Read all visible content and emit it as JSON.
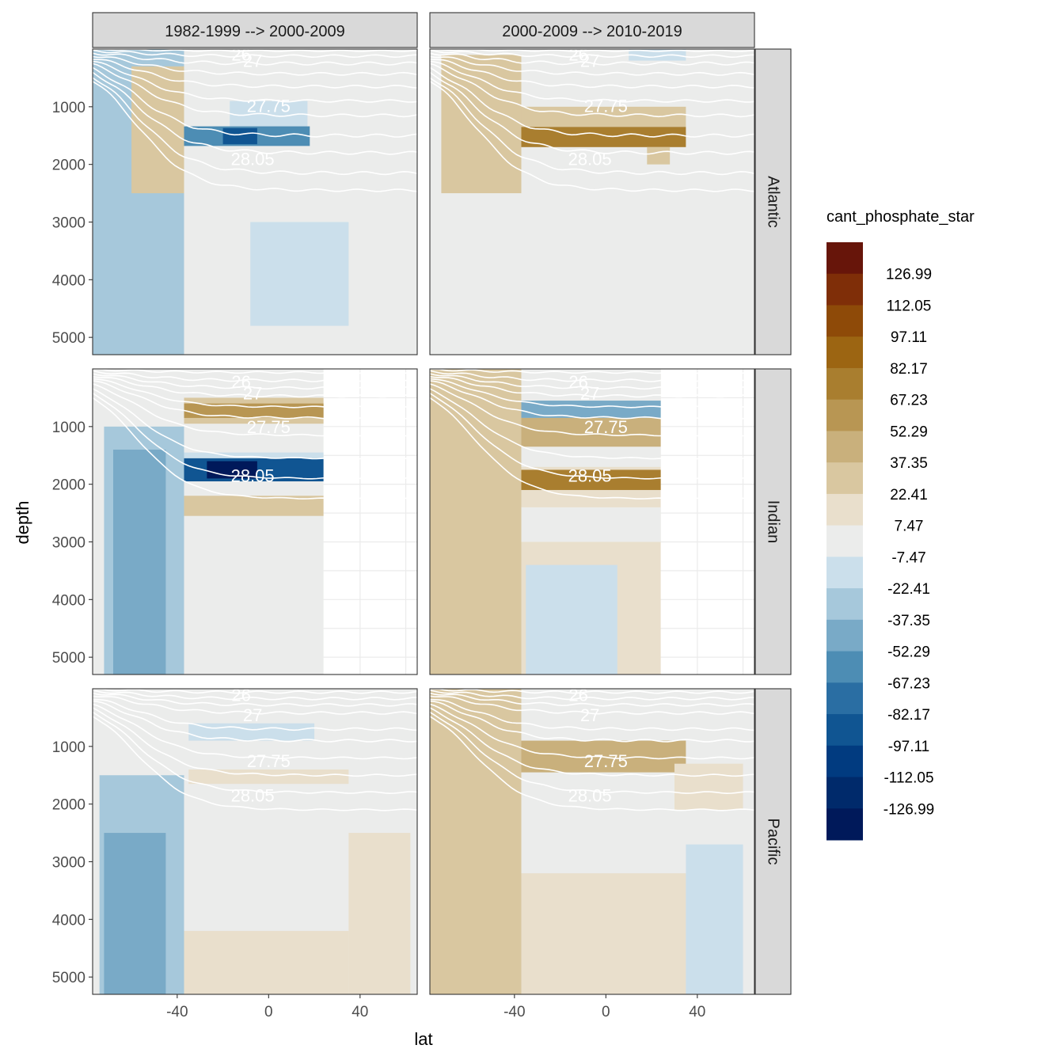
{
  "chart_data": {
    "type": "heatmap",
    "subtype": "faceted filled-contour ocean sections",
    "xlabel": "lat",
    "ylabel": "depth",
    "xlim": [
      -77,
      65
    ],
    "ylim": [
      5300,
      0
    ],
    "x_ticks": [
      -40,
      0,
      40
    ],
    "y_ticks": [
      1000,
      2000,
      3000,
      4000,
      5000
    ],
    "col_facets": [
      "1982-1999 --> 2000-2009",
      "2000-2009 --> 2010-2019"
    ],
    "row_facets": [
      "Atlantic",
      "Indian",
      "Pacific"
    ],
    "legend": {
      "title": "cant_phosphate_star",
      "labels": [
        "126.99",
        "112.05",
        "97.11",
        "82.17",
        "67.23",
        "52.29",
        "37.35",
        "22.41",
        "7.47",
        "-7.47",
        "-22.41",
        "-37.35",
        "-52.29",
        "-67.23",
        "-82.17",
        "-97.11",
        "-112.05",
        "-126.99"
      ],
      "colors": [
        "#67150a",
        "#7f2e08",
        "#8e4a08",
        "#9c6512",
        "#a97e2f",
        "#b89653",
        "#c9b07c",
        "#d9c7a0",
        "#e9dfcc",
        "#ebeceb",
        "#cbdfeb",
        "#a6c8db",
        "#79aac7",
        "#4d8db4",
        "#2a6ea3",
        "#105592",
        "#013b80",
        "#002a6b",
        "#00195a"
      ]
    },
    "isopycnals": {
      "labeled_values": [
        "26",
        "27",
        "27.75",
        "28.05"
      ],
      "sections": {
        "Atlantic": [
          [
            30,
            10
          ],
          [
            120,
            20
          ],
          [
            250,
            25
          ],
          [
            430,
            22
          ],
          [
            650,
            22
          ],
          [
            900,
            20
          ],
          [
            1150,
            22
          ],
          [
            1500,
            25
          ],
          [
            1800,
            25
          ],
          [
            2150,
            25
          ],
          [
            2450,
            20
          ]
        ],
        "Indian": [
          [
            60,
            15
          ],
          [
            200,
            20
          ],
          [
            330,
            18
          ],
          [
            470,
            18
          ],
          [
            660,
            12
          ],
          [
            850,
            15
          ],
          [
            1150,
            12
          ],
          [
            1550,
            10
          ],
          [
            1900,
            10
          ],
          [
            2250,
            8
          ]
        ],
        "Pacific": [
          [
            60,
            18
          ],
          [
            170,
            20
          ],
          [
            280,
            20
          ],
          [
            420,
            20
          ],
          [
            700,
            20
          ],
          [
            900,
            20
          ],
          [
            1200,
            15
          ],
          [
            1500,
            15
          ],
          [
            1800,
            15
          ],
          [
            2100,
            12
          ]
        ]
      }
    },
    "panels": [
      {
        "col": 0,
        "row": 0,
        "basin": "Atlantic",
        "blocks": [
          {
            "lat": [
              -77,
              -37
            ],
            "depth": [
              0,
              5300
            ],
            "value": -37
          },
          {
            "lat": [
              -77,
              -60
            ],
            "depth": [
              0,
              1300
            ],
            "value": -37
          },
          {
            "lat": [
              -60,
              -37
            ],
            "depth": [
              300,
              2500
            ],
            "value": 30
          },
          {
            "lat": [
              -37,
              65
            ],
            "depth": [
              0,
              5300
            ],
            "value": 0
          },
          {
            "lat": [
              -17,
              17
            ],
            "depth": [
              900,
              1350
            ],
            "value": -22
          },
          {
            "lat": [
              -37,
              18
            ],
            "depth": [
              1340,
              1680
            ],
            "value": -67
          },
          {
            "lat": [
              -20,
              -5
            ],
            "depth": [
              1370,
              1650
            ],
            "value": -97
          },
          {
            "lat": [
              -8,
              35
            ],
            "depth": [
              3000,
              4800
            ],
            "value": -22
          }
        ]
      },
      {
        "col": 1,
        "row": 0,
        "basin": "Atlantic",
        "blocks": [
          {
            "lat": [
              -77,
              65
            ],
            "depth": [
              0,
              5300
            ],
            "value": 0
          },
          {
            "lat": [
              -72,
              -37
            ],
            "depth": [
              100,
              2500
            ],
            "value": 25
          },
          {
            "lat": [
              -37,
              35
            ],
            "depth": [
              1000,
              1350
            ],
            "value": 30
          },
          {
            "lat": [
              -37,
              35
            ],
            "depth": [
              1350,
              1700
            ],
            "value": 70
          },
          {
            "lat": [
              18,
              28
            ],
            "depth": [
              1700,
              2000
            ],
            "value": 25
          },
          {
            "lat": [
              10,
              35
            ],
            "depth": [
              0,
              200
            ],
            "value": -22
          }
        ]
      },
      {
        "col": 0,
        "row": 1,
        "basin": "Indian",
        "blocks": [
          {
            "lat": [
              -77,
              -37
            ],
            "depth": [
              0,
              5300
            ],
            "value": 0
          },
          {
            "lat": [
              -72,
              -37
            ],
            "depth": [
              1000,
              5300
            ],
            "value": -37
          },
          {
            "lat": [
              -68,
              -45
            ],
            "depth": [
              1400,
              5300
            ],
            "value": -52
          },
          {
            "lat": [
              -37,
              24
            ],
            "depth": [
              0,
              5300
            ],
            "value": 0
          },
          {
            "lat": [
              -37,
              24
            ],
            "depth": [
              500,
              950
            ],
            "value": 25
          },
          {
            "lat": [
              -37,
              24
            ],
            "depth": [
              600,
              850
            ],
            "value": 60
          },
          {
            "lat": [
              -37,
              24
            ],
            "depth": [
              1450,
              1550
            ],
            "value": -22
          },
          {
            "lat": [
              -37,
              24
            ],
            "depth": [
              1550,
              1950
            ],
            "value": -97
          },
          {
            "lat": [
              -27,
              -5
            ],
            "depth": [
              1600,
              1900
            ],
            "value": -127
          },
          {
            "lat": [
              -37,
              24
            ],
            "depth": [
              2200,
              2550
            ],
            "value": 25
          }
        ]
      },
      {
        "col": 1,
        "row": 1,
        "basin": "Indian",
        "blocks": [
          {
            "lat": [
              -77,
              -37
            ],
            "depth": [
              0,
              5300
            ],
            "value": 30
          },
          {
            "lat": [
              -37,
              24
            ],
            "depth": [
              0,
              5300
            ],
            "value": 15
          },
          {
            "lat": [
              -37,
              24
            ],
            "depth": [
              0,
              700
            ],
            "value": 0
          },
          {
            "lat": [
              -37,
              24
            ],
            "depth": [
              550,
              850
            ],
            "value": -52
          },
          {
            "lat": [
              -37,
              24
            ],
            "depth": [
              850,
              1350
            ],
            "value": 45
          },
          {
            "lat": [
              -37,
              24
            ],
            "depth": [
              1350,
              1700
            ],
            "value": 0
          },
          {
            "lat": [
              -37,
              24
            ],
            "depth": [
              1750,
              2100
            ],
            "value": 70
          },
          {
            "lat": [
              -37,
              24
            ],
            "depth": [
              2400,
              3000
            ],
            "value": 0
          },
          {
            "lat": [
              -35,
              5
            ],
            "depth": [
              3400,
              5300
            ],
            "value": -22
          }
        ]
      },
      {
        "col": 0,
        "row": 2,
        "basin": "Pacific",
        "blocks": [
          {
            "lat": [
              -77,
              -37
            ],
            "depth": [
              0,
              5300
            ],
            "value": 0
          },
          {
            "lat": [
              -74,
              -37
            ],
            "depth": [
              1500,
              5300
            ],
            "value": -37
          },
          {
            "lat": [
              -72,
              -45
            ],
            "depth": [
              2500,
              5300
            ],
            "value": -52
          },
          {
            "lat": [
              -37,
              65
            ],
            "depth": [
              0,
              5300
            ],
            "value": 0
          },
          {
            "lat": [
              -35,
              20
            ],
            "depth": [
              600,
              900
            ],
            "value": -22
          },
          {
            "lat": [
              -35,
              35
            ],
            "depth": [
              1400,
              1650
            ],
            "value": 22
          },
          {
            "lat": [
              35,
              62
            ],
            "depth": [
              2500,
              5300
            ],
            "value": 22
          },
          {
            "lat": [
              -37,
              35
            ],
            "depth": [
              4200,
              5300
            ],
            "value": 22
          }
        ]
      },
      {
        "col": 1,
        "row": 2,
        "basin": "Pacific",
        "blocks": [
          {
            "lat": [
              -77,
              -37
            ],
            "depth": [
              0,
              5300
            ],
            "value": 35
          },
          {
            "lat": [
              -37,
              65
            ],
            "depth": [
              0,
              5300
            ],
            "value": 0
          },
          {
            "lat": [
              -37,
              35
            ],
            "depth": [
              900,
              1450
            ],
            "value": 40
          },
          {
            "lat": [
              -37,
              35
            ],
            "depth": [
              3200,
              5300
            ],
            "value": 22
          },
          {
            "lat": [
              35,
              60
            ],
            "depth": [
              2700,
              5300
            ],
            "value": -22
          },
          {
            "lat": [
              30,
              60
            ],
            "depth": [
              1300,
              2100
            ],
            "value": 22
          }
        ]
      }
    ]
  }
}
